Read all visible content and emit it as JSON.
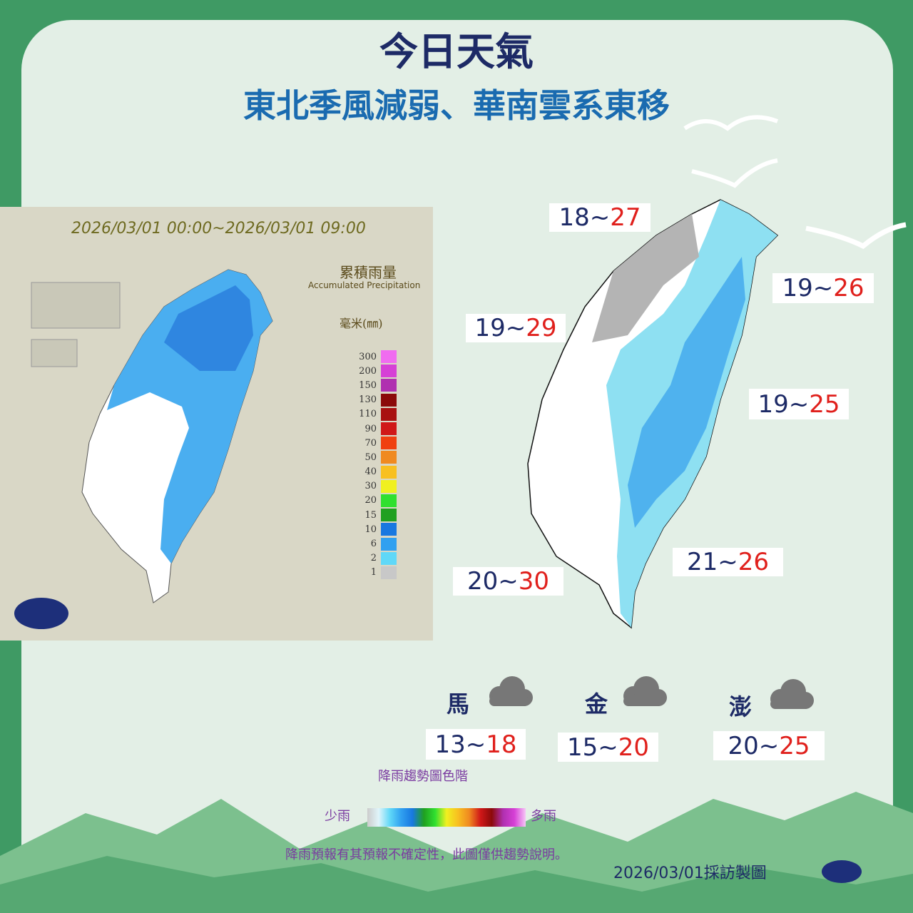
{
  "header": {
    "title": "今日天氣",
    "subtitle": "東北季風減弱、華南雲系東移"
  },
  "rain_map": {
    "period": "2026/03/01 00:00~2026/03/01 09:00",
    "legend_title": "累積雨量",
    "legend_subtitle": "Accumulated Precipitation",
    "unit": "毫米(㎜)",
    "levels": [
      {
        "value": 300,
        "color": "#f06cf0"
      },
      {
        "value": 200,
        "color": "#d640d6"
      },
      {
        "value": 150,
        "color": "#b030b0"
      },
      {
        "value": 130,
        "color": "#8b0a0a"
      },
      {
        "value": 110,
        "color": "#a81010"
      },
      {
        "value": 90,
        "color": "#d01818"
      },
      {
        "value": 70,
        "color": "#f04010"
      },
      {
        "value": 50,
        "color": "#f08a20"
      },
      {
        "value": 40,
        "color": "#f8c020"
      },
      {
        "value": 30,
        "color": "#f0f020"
      },
      {
        "value": 20,
        "color": "#30e030"
      },
      {
        "value": 15,
        "color": "#20a020"
      },
      {
        "value": 10,
        "color": "#1878e0"
      },
      {
        "value": 6,
        "color": "#30a0f0"
      },
      {
        "value": 2,
        "color": "#60d8f8"
      },
      {
        "value": 1,
        "color": "#c8c8c8"
      }
    ]
  },
  "forecast": {
    "regions": [
      {
        "low": 18,
        "sep": "~",
        "high": 27
      },
      {
        "low": 19,
        "sep": "~",
        "high": 26
      },
      {
        "low": 19,
        "sep": "~",
        "high": 29
      },
      {
        "low": 19,
        "sep": "~",
        "high": 25
      },
      {
        "low": 21,
        "sep": "~",
        "high": 26
      },
      {
        "low": 20,
        "sep": "~",
        "high": 30
      }
    ],
    "islands": [
      {
        "name": "馬",
        "low": 13,
        "sep": "~",
        "high": 18
      },
      {
        "name": "金",
        "low": 15,
        "sep": "~",
        "high": 20
      },
      {
        "name": "澎",
        "low": 20,
        "sep": "~",
        "high": 25
      }
    ]
  },
  "footer": {
    "scale_title": "降雨趨勢圖色階",
    "less": "少雨",
    "more": "多雨",
    "disclaimer": "降雨預報有其預報不確定性，此圖僅供趨勢說明。",
    "credit": "2026/03/01採訪製圖"
  }
}
